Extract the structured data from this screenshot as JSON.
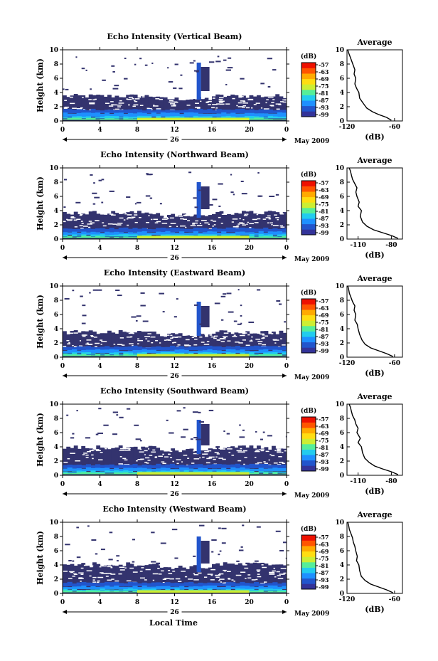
{
  "colors": {
    "background": "#ffffff",
    "echo_fill": "#33336e",
    "colorscale": [
      "#333399",
      "#2255cc",
      "#1e90ff",
      "#22ccee",
      "#55ee99",
      "#ccee33",
      "#ffdd11",
      "#ffaa00",
      "#ff5500",
      "#ee1100"
    ]
  },
  "labels": {
    "ylabel": "Height (km)",
    "xlabel": "Local Time",
    "date_label": "May 2009",
    "day_label": "26",
    "unit": "(dB)",
    "avg_title": "Average",
    "avg_xlabel": "(dB)"
  },
  "chart_data": [
    {
      "type": "heatmap",
      "title": "Echo Intensity (Vertical Beam)",
      "ylabel": "Height (km)",
      "x_ticks": [
        "0",
        "4",
        "8",
        "12",
        "16",
        "20",
        "0"
      ],
      "y_ticks": [
        "0",
        "2",
        "4",
        "6",
        "8",
        "10"
      ],
      "xlim": [
        0,
        24
      ],
      "ylim": [
        0,
        10
      ],
      "day": "26",
      "date": "May 2009",
      "colorbar": {
        "unit": "(dB)",
        "ticks": [
          "-57",
          "-63",
          "-69",
          "-75",
          "-81",
          "-87",
          "-93",
          "-99"
        ]
      },
      "layers": {
        "top_km": 3.6,
        "bright_top_km": 1.1,
        "spike_time_h": 14.6,
        "spike_top_km": 8.2
      },
      "average": {
        "title": "Average",
        "xlabel": "(dB)",
        "x_ticks": [
          "-120",
          "-60"
        ],
        "xlim": [
          -120,
          -50
        ],
        "y_ticks": [
          "0",
          "2",
          "4",
          "6",
          "8",
          "10"
        ],
        "profile": [
          [
            -64,
            0.1
          ],
          [
            -70,
            0.5
          ],
          [
            -80,
            0.9
          ],
          [
            -88,
            1.3
          ],
          [
            -95,
            1.8
          ],
          [
            -99,
            2.4
          ],
          [
            -104,
            3.2
          ],
          [
            -105,
            4.0
          ],
          [
            -108,
            4.6
          ],
          [
            -110,
            5.2
          ],
          [
            -109,
            6.0
          ],
          [
            -111,
            6.6
          ],
          [
            -110,
            7.2
          ],
          [
            -112,
            7.8
          ],
          [
            -114,
            8.4
          ],
          [
            -116,
            9.0
          ],
          [
            -118,
            9.6
          ],
          [
            -119,
            10.0
          ]
        ]
      }
    },
    {
      "type": "heatmap",
      "title": "Echo Intensity (Northward Beam)",
      "ylabel": "Height (km)",
      "x_ticks": [
        "0",
        "4",
        "8",
        "12",
        "16",
        "20",
        "0"
      ],
      "y_ticks": [
        "0",
        "2",
        "4",
        "6",
        "8",
        "10"
      ],
      "xlim": [
        0,
        24
      ],
      "ylim": [
        0,
        10
      ],
      "day": "26",
      "date": "May 2009",
      "colorbar": {
        "unit": "(dB)",
        "ticks": [
          "-57",
          "-63",
          "-69",
          "-75",
          "-81",
          "-87",
          "-93",
          "-99"
        ]
      },
      "layers": {
        "top_km": 3.8,
        "bright_top_km": 1.0,
        "spike_time_h": 14.6,
        "spike_top_km": 8.0
      },
      "average": {
        "title": "Average",
        "xlabel": "(dB)",
        "x_ticks": [
          "-110",
          "-80"
        ],
        "xlim": [
          -120,
          -70
        ],
        "y_ticks": [
          "0",
          "2",
          "4",
          "6",
          "8",
          "10"
        ],
        "profile": [
          [
            -74,
            0.1
          ],
          [
            -80,
            0.5
          ],
          [
            -88,
            0.9
          ],
          [
            -96,
            1.3
          ],
          [
            -102,
            1.8
          ],
          [
            -106,
            2.4
          ],
          [
            -108,
            3.2
          ],
          [
            -107,
            4.0
          ],
          [
            -110,
            4.6
          ],
          [
            -109,
            5.2
          ],
          [
            -111,
            6.0
          ],
          [
            -112,
            6.6
          ],
          [
            -111,
            7.2
          ],
          [
            -113,
            7.8
          ],
          [
            -115,
            8.4
          ],
          [
            -116,
            9.0
          ],
          [
            -117,
            9.6
          ],
          [
            -118,
            10.0
          ]
        ]
      }
    },
    {
      "type": "heatmap",
      "title": "Echo Intensity (Eastward Beam)",
      "ylabel": "Height (km)",
      "x_ticks": [
        "0",
        "4",
        "8",
        "12",
        "16",
        "20",
        "0"
      ],
      "y_ticks": [
        "0",
        "2",
        "4",
        "6",
        "8",
        "10"
      ],
      "xlim": [
        0,
        24
      ],
      "ylim": [
        0,
        10
      ],
      "day": "26",
      "date": "May 2009",
      "colorbar": {
        "unit": "(dB)",
        "ticks": [
          "-57",
          "-63",
          "-69",
          "-75",
          "-81",
          "-87",
          "-93",
          "-99"
        ]
      },
      "layers": {
        "top_km": 3.6,
        "bright_top_km": 1.0,
        "spike_time_h": 14.6,
        "spike_top_km": 7.8
      },
      "average": {
        "title": "Average",
        "xlabel": "(dB)",
        "x_ticks": [
          "-120",
          "-60"
        ],
        "xlim": [
          -120,
          -50
        ],
        "y_ticks": [
          "0",
          "2",
          "4",
          "6",
          "8",
          "10"
        ],
        "profile": [
          [
            -62,
            0.1
          ],
          [
            -70,
            0.5
          ],
          [
            -80,
            0.9
          ],
          [
            -90,
            1.3
          ],
          [
            -97,
            1.8
          ],
          [
            -101,
            2.4
          ],
          [
            -104,
            3.2
          ],
          [
            -106,
            4.0
          ],
          [
            -107,
            4.6
          ],
          [
            -110,
            5.2
          ],
          [
            -109,
            6.0
          ],
          [
            -111,
            6.6
          ],
          [
            -110,
            7.2
          ],
          [
            -113,
            7.8
          ],
          [
            -115,
            8.4
          ],
          [
            -117,
            9.0
          ],
          [
            -118,
            9.6
          ],
          [
            -119,
            10.0
          ]
        ]
      }
    },
    {
      "type": "heatmap",
      "title": "Echo Intensity (Southward Beam)",
      "ylabel": "Height (km)",
      "x_ticks": [
        "0",
        "4",
        "8",
        "12",
        "16",
        "20",
        "0"
      ],
      "y_ticks": [
        "0",
        "2",
        "4",
        "6",
        "8",
        "10"
      ],
      "xlim": [
        0,
        24
      ],
      "ylim": [
        0,
        10
      ],
      "day": "26",
      "date": "May 2009",
      "colorbar": {
        "unit": "(dB)",
        "ticks": [
          "-57",
          "-63",
          "-69",
          "-75",
          "-81",
          "-87",
          "-93",
          "-99"
        ]
      },
      "layers": {
        "top_km": 4.0,
        "bright_top_km": 1.0,
        "spike_time_h": 14.6,
        "spike_top_km": 7.8
      },
      "average": {
        "title": "Average",
        "xlabel": "(dB)",
        "x_ticks": [
          "-110",
          "-80"
        ],
        "xlim": [
          -120,
          -70
        ],
        "y_ticks": [
          "0",
          "2",
          "4",
          "6",
          "8",
          "10"
        ],
        "profile": [
          [
            -74,
            0.1
          ],
          [
            -80,
            0.5
          ],
          [
            -88,
            0.9
          ],
          [
            -95,
            1.3
          ],
          [
            -100,
            1.8
          ],
          [
            -104,
            2.4
          ],
          [
            -106,
            3.2
          ],
          [
            -107,
            4.0
          ],
          [
            -110,
            4.6
          ],
          [
            -108,
            5.2
          ],
          [
            -111,
            6.0
          ],
          [
            -110,
            6.6
          ],
          [
            -112,
            7.2
          ],
          [
            -113,
            7.8
          ],
          [
            -115,
            8.4
          ],
          [
            -116,
            9.0
          ],
          [
            -117,
            9.6
          ],
          [
            -118,
            10.0
          ]
        ]
      }
    },
    {
      "type": "heatmap",
      "title": "Echo Intensity (Westward Beam)",
      "ylabel": "Height (km)",
      "x_ticks": [
        "0",
        "4",
        "8",
        "12",
        "16",
        "20",
        "0"
      ],
      "y_ticks": [
        "0",
        "2",
        "4",
        "6",
        "8",
        "10"
      ],
      "xlim": [
        0,
        24
      ],
      "ylim": [
        0,
        10
      ],
      "day": "26",
      "date": "May 2009",
      "colorbar": {
        "unit": "(dB)",
        "ticks": [
          "-57",
          "-63",
          "-69",
          "-75",
          "-81",
          "-87",
          "-93",
          "-99"
        ]
      },
      "layers": {
        "top_km": 4.2,
        "bright_top_km": 1.0,
        "spike_time_h": 14.6,
        "spike_top_km": 8.0
      },
      "average": {
        "title": "Average",
        "xlabel": "(dB)",
        "x_ticks": [
          "-120",
          "-60"
        ],
        "xlim": [
          -120,
          -50
        ],
        "y_ticks": [
          "0",
          "2",
          "4",
          "6",
          "8",
          "10"
        ],
        "profile": [
          [
            -62,
            0.1
          ],
          [
            -70,
            0.5
          ],
          [
            -80,
            0.9
          ],
          [
            -90,
            1.3
          ],
          [
            -97,
            1.8
          ],
          [
            -102,
            2.4
          ],
          [
            -104,
            3.2
          ],
          [
            -105,
            4.0
          ],
          [
            -108,
            4.6
          ],
          [
            -107,
            5.2
          ],
          [
            -109,
            6.0
          ],
          [
            -110,
            6.6
          ],
          [
            -112,
            7.2
          ],
          [
            -113,
            7.8
          ],
          [
            -115,
            8.4
          ],
          [
            -117,
            9.0
          ],
          [
            -118,
            9.6
          ],
          [
            -119,
            10.0
          ]
        ]
      }
    }
  ]
}
